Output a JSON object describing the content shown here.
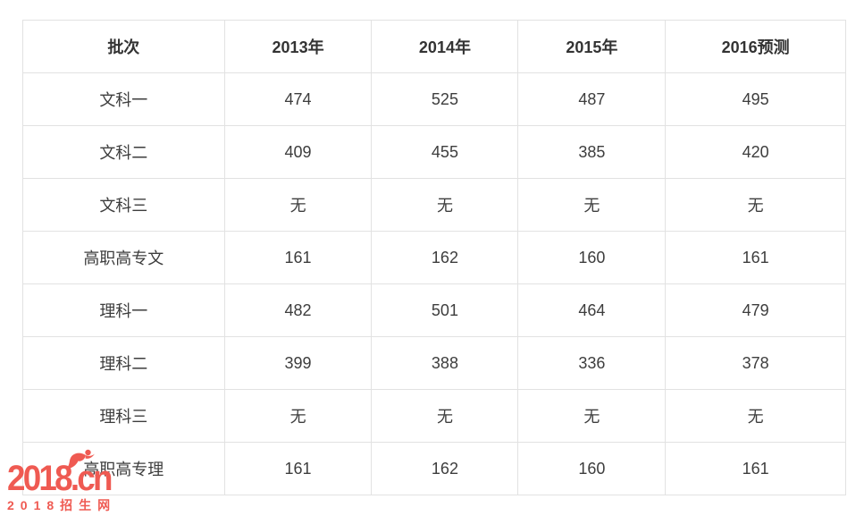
{
  "chart_data": {
    "type": "table",
    "title": "",
    "columns": [
      "批次",
      "2013年",
      "2014年",
      "2015年",
      "2016预测"
    ],
    "rows": [
      {
        "label": "文科一",
        "values": [
          "474",
          "525",
          "487",
          "495"
        ]
      },
      {
        "label": "文科二",
        "values": [
          "409",
          "455",
          "385",
          "420"
        ]
      },
      {
        "label": "文科三",
        "values": [
          "无",
          "无",
          "无",
          "无"
        ]
      },
      {
        "label": "高职高专文",
        "values": [
          "161",
          "162",
          "160",
          "161"
        ]
      },
      {
        "label": "理科一",
        "values": [
          "482",
          "501",
          "464",
          "479"
        ]
      },
      {
        "label": "理科二",
        "values": [
          "399",
          "388",
          "336",
          "378"
        ]
      },
      {
        "label": "理科三",
        "values": [
          "无",
          "无",
          "无",
          "无"
        ]
      },
      {
        "label": "高职高专理",
        "values": [
          "161",
          "162",
          "160",
          "161"
        ]
      }
    ],
    "layout": {
      "grid": "full-borders",
      "header_row": true
    }
  },
  "watermark": {
    "logo_text": "2018.cn",
    "subtitle": "2018招生网",
    "color": "#ef5a52"
  }
}
